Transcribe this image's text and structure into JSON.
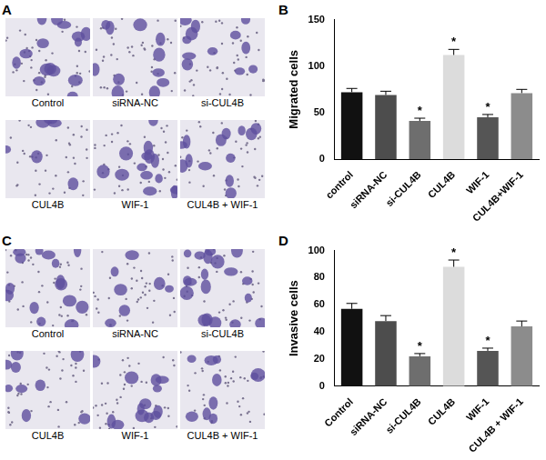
{
  "chart_data": [
    {
      "type": "bar",
      "annotations": [
        "B"
      ],
      "y_label": "Migrated cells",
      "categories": [
        "control",
        "siRNA-NC",
        "si-CUL4B",
        "CUL4B",
        "WIF-1",
        "CUL4B+WIF-1"
      ],
      "values": [
        72,
        69,
        41,
        112,
        45,
        71
      ],
      "errors": [
        4,
        4,
        3,
        6,
        3,
        4
      ],
      "significance": [
        null,
        null,
        "*",
        "*",
        "*",
        null
      ],
      "colors": [
        "#111111",
        "#4d4d4d",
        "#6e6e6e",
        "#dcdcdc",
        "#555555",
        "#8c8c8c"
      ],
      "ylim": [
        0,
        150
      ],
      "yticks": [
        0,
        50,
        100,
        150
      ],
      "grid": false
    },
    {
      "type": "bar",
      "annotations": [
        "D"
      ],
      "y_label": "Invasive cells",
      "categories": [
        "Control",
        "siRNA-NC",
        "si-CUL4B",
        "CUL4B",
        "WIF-1",
        "CUL4B + WIF-1"
      ],
      "values": [
        57,
        48,
        22,
        88,
        26,
        44
      ],
      "errors": [
        4,
        4,
        2,
        5,
        2,
        4
      ],
      "significance": [
        null,
        null,
        "*",
        "*",
        "*",
        null
      ],
      "colors": [
        "#111111",
        "#4d4d4d",
        "#6e6e6e",
        "#dcdcdc",
        "#555555",
        "#8c8c8c"
      ],
      "ylim": [
        0,
        100
      ],
      "yticks": [
        0,
        20,
        40,
        60,
        80,
        100
      ],
      "grid": false
    }
  ],
  "image_panels": [
    {
      "label": "A",
      "captions": [
        "Control",
        "siRNA-NC",
        "si-CUL4B",
        "CUL4B",
        "WIF-1",
        "CUL4B + WIF-1"
      ]
    },
    {
      "label": "C",
      "captions": [
        "Control",
        "siRNA-NC",
        "si-CUL4B",
        "CUL4B",
        "WIF-1",
        "CUL4B + WIF-1"
      ]
    }
  ]
}
